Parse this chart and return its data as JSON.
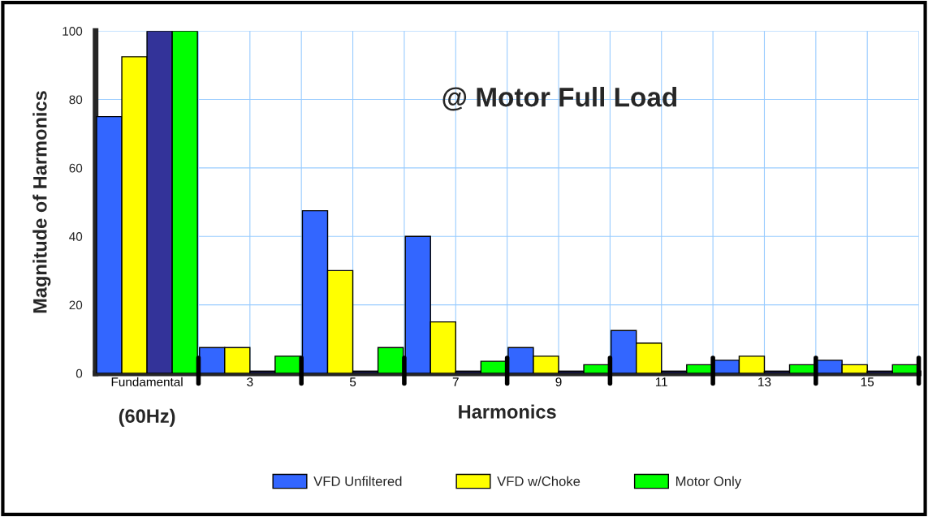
{
  "chart_data": {
    "type": "bar",
    "categories": [
      "Fundamental",
      "3",
      "5",
      "7",
      "9",
      "11",
      "13",
      "15"
    ],
    "series": [
      {
        "name": "VFD Unfiltered",
        "color": "#3366ff",
        "values": [
          75,
          7.5,
          47.5,
          40,
          7.5,
          12.5,
          3.8,
          3.8
        ]
      },
      {
        "name": "VFD w/Choke",
        "color": "#ffff00",
        "values": [
          92.5,
          7.5,
          30,
          15,
          5,
          8.8,
          5,
          2.5
        ]
      },
      {
        "color": "#333399",
        "values": [
          100,
          0.5,
          0.5,
          0.5,
          0.5,
          0.5,
          0.5,
          0.5
        ]
      },
      {
        "name": "Motor Only",
        "color": "#00ff00",
        "values": [
          100,
          5,
          7.5,
          3.5,
          2.5,
          2.5,
          2.5,
          2.5
        ]
      }
    ],
    "xlabel": "Harmonics",
    "ylabel": "Magnitude of Harmonics",
    "annotations": [
      "@ Motor Full Load",
      "(60Hz)"
    ],
    "ylim": [
      0,
      100
    ],
    "yticks": [
      0,
      20,
      40,
      60,
      80,
      100
    ],
    "grid": true,
    "legend": "bottom"
  }
}
